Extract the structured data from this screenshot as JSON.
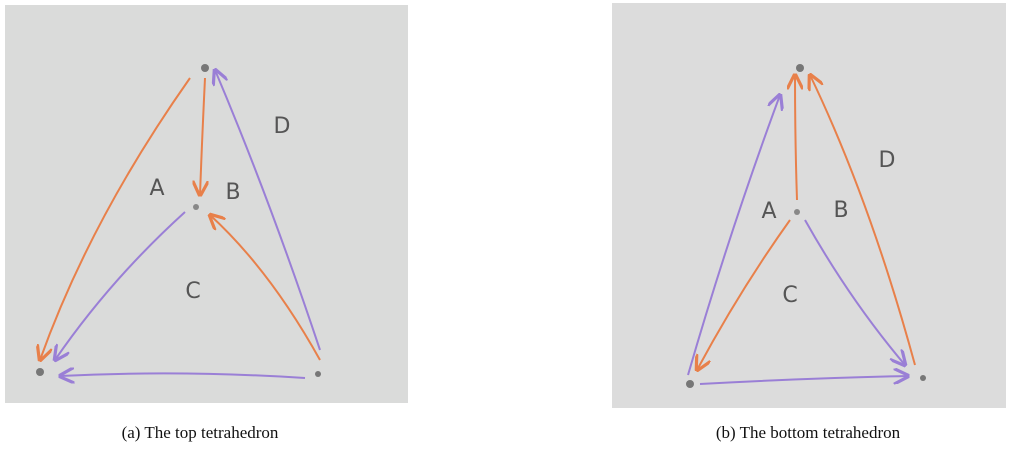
{
  "panels": [
    {
      "labels": [
        "A",
        "B",
        "C",
        "D"
      ],
      "caption": "(a) The top tetrahedron"
    },
    {
      "labels": [
        "A",
        "B",
        "C",
        "D"
      ],
      "caption": "(b) The bottom tetrahedron"
    }
  ]
}
